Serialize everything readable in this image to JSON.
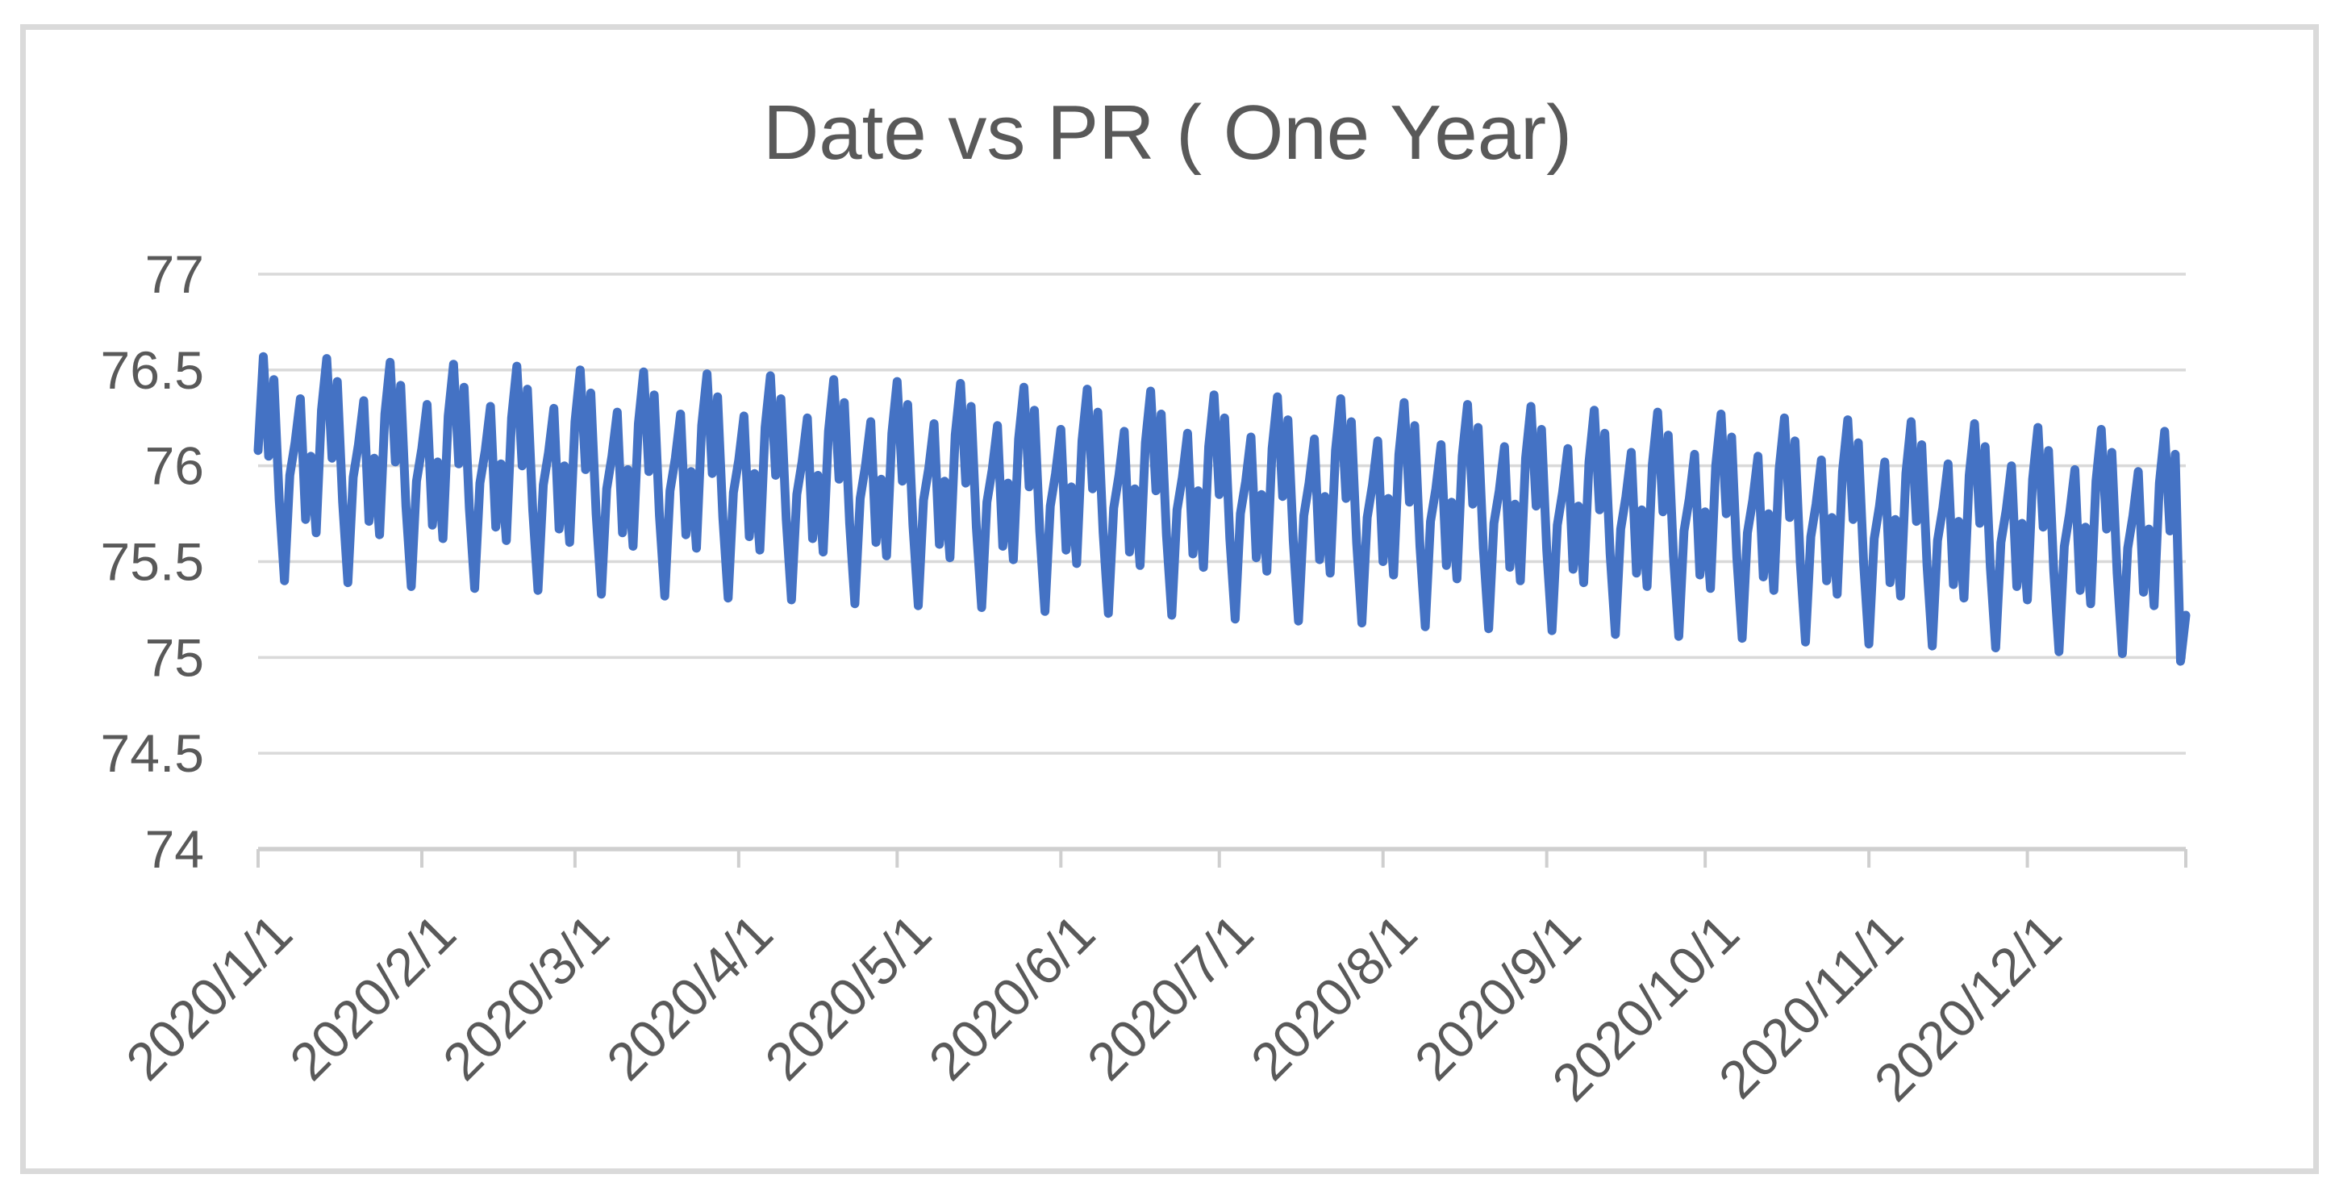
{
  "chart_data": {
    "type": "line",
    "title": "Date vs PR ( One Year)",
    "xlabel": "",
    "ylabel": "",
    "ylim": [
      74,
      77
    ],
    "grid": "horizontal",
    "legend_position": "none",
    "yticks": [
      77,
      76.5,
      76,
      75.5,
      75,
      74.5,
      74
    ],
    "ytick_labels": [
      "77",
      "76.5",
      "76",
      "75.5",
      "75",
      "74.5",
      "74"
    ],
    "x_tick_labels": [
      "2020/1/1",
      "2020/2/1",
      "2020/3/1",
      "2020/4/1",
      "2020/5/1",
      "2020/6/1",
      "2020/7/1",
      "2020/8/1",
      "2020/9/1",
      "2020/10/1",
      "2020/11/1",
      "2020/12/1"
    ],
    "x_tick_day_offsets": [
      0,
      31,
      60,
      91,
      121,
      152,
      182,
      213,
      244,
      274,
      305,
      335
    ],
    "x_axis_end_day": 365,
    "x_start_date": "2020/1/1",
    "x_end_date": "2020/12/31",
    "frequency": "daily",
    "x_tick_label_rotation_deg": -45,
    "series": [
      {
        "name": "PR",
        "color": "#4472C4",
        "values": [
          76.08,
          76.57,
          76.05,
          76.45,
          75.82,
          75.4,
          75.95,
          76.12,
          76.35,
          75.72,
          76.05,
          75.65,
          76.29,
          76.56,
          76.04,
          76.44,
          75.81,
          75.39,
          75.94,
          76.11,
          76.34,
          75.71,
          76.04,
          75.64,
          76.27,
          76.54,
          76.02,
          76.42,
          75.79,
          75.37,
          75.92,
          76.09,
          76.32,
          75.69,
          76.02,
          75.62,
          76.26,
          76.53,
          76.01,
          76.41,
          75.78,
          75.36,
          75.91,
          76.08,
          76.31,
          75.68,
          76.01,
          75.61,
          76.25,
          76.52,
          76.0,
          76.4,
          75.77,
          75.35,
          75.9,
          76.07,
          76.3,
          75.67,
          76.0,
          75.6,
          76.23,
          76.5,
          75.98,
          76.38,
          75.75,
          75.33,
          75.88,
          76.05,
          76.28,
          75.65,
          75.98,
          75.58,
          76.22,
          76.49,
          75.97,
          76.37,
          75.74,
          75.32,
          75.87,
          76.04,
          76.27,
          75.64,
          75.97,
          75.57,
          76.21,
          76.48,
          75.96,
          76.36,
          75.73,
          75.31,
          75.86,
          76.03,
          76.26,
          75.63,
          75.96,
          75.56,
          76.2,
          76.47,
          75.95,
          76.35,
          75.72,
          75.3,
          75.85,
          76.02,
          76.25,
          75.62,
          75.95,
          75.55,
          76.18,
          76.45,
          75.93,
          76.33,
          75.7,
          75.28,
          75.83,
          76.0,
          76.23,
          75.6,
          75.93,
          75.53,
          76.17,
          76.44,
          75.92,
          76.32,
          75.69,
          75.27,
          75.82,
          75.99,
          76.22,
          75.59,
          75.92,
          75.52,
          76.16,
          76.43,
          75.91,
          76.31,
          75.68,
          75.26,
          75.81,
          75.98,
          76.21,
          75.58,
          75.91,
          75.51,
          76.14,
          76.41,
          75.89,
          76.29,
          75.66,
          75.24,
          75.79,
          75.96,
          76.19,
          75.56,
          75.89,
          75.49,
          76.13,
          76.4,
          75.88,
          76.28,
          75.65,
          75.23,
          75.78,
          75.95,
          76.18,
          75.55,
          75.88,
          75.48,
          76.12,
          76.39,
          75.87,
          76.27,
          75.64,
          75.22,
          75.77,
          75.94,
          76.17,
          75.54,
          75.87,
          75.47,
          76.1,
          76.37,
          75.85,
          76.25,
          75.62,
          75.2,
          75.75,
          75.92,
          76.15,
          75.52,
          75.85,
          75.45,
          76.09,
          76.36,
          75.84,
          76.24,
          75.61,
          75.19,
          75.74,
          75.91,
          76.14,
          75.51,
          75.84,
          75.44,
          76.08,
          76.35,
          75.83,
          76.23,
          75.6,
          75.18,
          75.73,
          75.9,
          76.13,
          75.5,
          75.83,
          75.43,
          76.06,
          76.33,
          75.81,
          76.21,
          75.58,
          75.16,
          75.71,
          75.88,
          76.11,
          75.48,
          75.81,
          75.41,
          76.05,
          76.32,
          75.8,
          76.2,
          75.57,
          75.15,
          75.7,
          75.87,
          76.1,
          75.47,
          75.8,
          75.4,
          76.04,
          76.31,
          75.79,
          76.19,
          75.56,
          75.14,
          75.69,
          75.86,
          76.09,
          75.46,
          75.79,
          75.39,
          76.02,
          76.29,
          75.77,
          76.17,
          75.54,
          75.12,
          75.67,
          75.84,
          76.07,
          75.44,
          75.77,
          75.37,
          76.01,
          76.28,
          75.76,
          76.16,
          75.53,
          75.11,
          75.66,
          75.83,
          76.06,
          75.43,
          75.76,
          75.36,
          76.0,
          76.27,
          75.75,
          76.15,
          75.52,
          75.1,
          75.65,
          75.82,
          76.05,
          75.42,
          75.75,
          75.35,
          75.98,
          76.25,
          75.73,
          76.13,
          75.5,
          75.08,
          75.63,
          75.8,
          76.03,
          75.4,
          75.73,
          75.33,
          75.97,
          76.24,
          75.72,
          76.12,
          75.49,
          75.07,
          75.62,
          75.79,
          76.02,
          75.39,
          75.72,
          75.32,
          75.96,
          76.23,
          75.71,
          76.11,
          75.48,
          75.06,
          75.61,
          75.78,
          76.01,
          75.38,
          75.71,
          75.31,
          75.95,
          76.22,
          75.7,
          76.1,
          75.47,
          75.05,
          75.6,
          75.77,
          76.0,
          75.37,
          75.7,
          75.3,
          75.93,
          76.2,
          75.68,
          76.08,
          75.45,
          75.03,
          75.58,
          75.75,
          75.98,
          75.35,
          75.68,
          75.28,
          75.92,
          76.19,
          75.67,
          76.07,
          75.44,
          75.02,
          75.57,
          75.74,
          75.97,
          75.34,
          75.67,
          75.27,
          75.91,
          76.18,
          75.66,
          76.06,
          74.98,
          75.22
        ]
      }
    ]
  },
  "colors": {
    "line": "#4472C4",
    "gridline": "#D9D9D9",
    "axis": "#CFCFCF",
    "text": "#595959",
    "frame_border": "#DADADA",
    "background": "#FFFFFF"
  }
}
